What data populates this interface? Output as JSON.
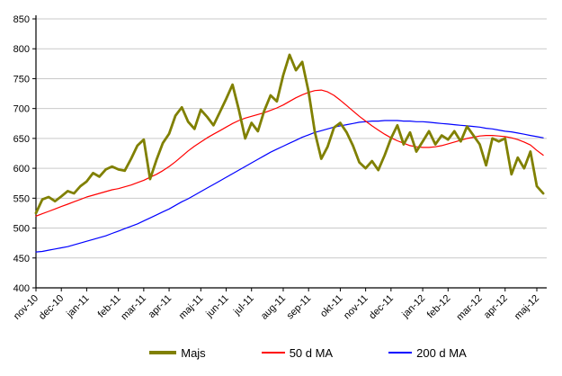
{
  "chart_data": {
    "type": "line",
    "title": "",
    "xlabel": "",
    "ylabel": "",
    "grid": "horizontal",
    "legend_position": "bottom-center",
    "background_color": "#FFFFFF",
    "gridline_color": "#C9C9C9",
    "axis_color": "#000000",
    "label_color": "#000000",
    "y_axis": {
      "min": 400,
      "max": 850,
      "step": 50
    },
    "y_ticks": [
      400,
      450,
      500,
      550,
      600,
      650,
      700,
      750,
      800,
      850
    ],
    "x_labels": [
      "nov-10",
      "dec-10",
      "jan-11",
      "feb-11",
      "mar-11",
      "apr-11",
      "maj-11",
      "jun-11",
      "jul-11",
      "aug-11",
      "sep-11",
      "okt-11",
      "nov-11",
      "dec-11",
      "jan-12",
      "feb-12",
      "mar-12",
      "apr-12",
      "maj-12"
    ],
    "x_label_indices": [
      0,
      4,
      8,
      13,
      17,
      21,
      26,
      30,
      34,
      39,
      43,
      48,
      52,
      56,
      61,
      65,
      70,
      74,
      79
    ],
    "series": [
      {
        "name": "Majs",
        "color": "#808000",
        "stroke_width": 2.8,
        "values": [
          525,
          548,
          552,
          545,
          553,
          562,
          558,
          570,
          578,
          592,
          586,
          598,
          603,
          598,
          596,
          616,
          638,
          648,
          582,
          614,
          642,
          658,
          688,
          702,
          678,
          666,
          698,
          686,
          672,
          694,
          716,
          740,
          698,
          650,
          676,
          662,
          696,
          722,
          712,
          756,
          790,
          764,
          778,
          728,
          660,
          616,
          636,
          668,
          676,
          660,
          638,
          610,
          600,
          612,
          597,
          622,
          650,
          672,
          640,
          660,
          628,
          645,
          662,
          640,
          655,
          648,
          662,
          645,
          670,
          655,
          640,
          605,
          650,
          645,
          650,
          590,
          618,
          600,
          628,
          570,
          558
        ]
      },
      {
        "name": "50 d MA",
        "color": "#FF0000",
        "stroke_width": 1.2,
        "values": [
          520,
          524,
          528,
          532,
          536,
          540,
          544,
          548,
          552,
          555,
          558,
          561,
          564,
          566,
          569,
          572,
          576,
          580,
          585,
          590,
          596,
          603,
          611,
          620,
          629,
          637,
          644,
          651,
          657,
          663,
          669,
          675,
          680,
          684,
          687,
          690,
          693,
          697,
          701,
          706,
          712,
          718,
          723,
          727,
          730,
          731,
          728,
          722,
          714,
          705,
          696,
          687,
          679,
          671,
          664,
          657,
          651,
          646,
          642,
          638,
          636,
          635,
          635,
          636,
          638,
          641,
          644,
          647,
          650,
          652,
          654,
          655,
          655,
          654,
          653,
          651,
          648,
          644,
          639,
          630,
          622
        ]
      },
      {
        "name": "200 d MA",
        "color": "#0000FF",
        "stroke_width": 1.2,
        "values": [
          460,
          461,
          463,
          465,
          467,
          469,
          472,
          475,
          478,
          481,
          484,
          487,
          491,
          495,
          499,
          503,
          507,
          512,
          517,
          522,
          527,
          532,
          538,
          544,
          549,
          555,
          561,
          567,
          573,
          579,
          585,
          591,
          597,
          603,
          609,
          615,
          621,
          627,
          632,
          637,
          642,
          647,
          652,
          656,
          660,
          663,
          666,
          669,
          671,
          673,
          675,
          677,
          678,
          679,
          679,
          680,
          680,
          680,
          679,
          679,
          678,
          678,
          677,
          676,
          675,
          674,
          673,
          672,
          671,
          670,
          669,
          667,
          666,
          664,
          662,
          661,
          659,
          657,
          655,
          653,
          651
        ]
      }
    ]
  },
  "legend": {
    "items": [
      {
        "label": "Majs"
      },
      {
        "label": "50 d MA"
      },
      {
        "label": "200 d MA"
      }
    ]
  }
}
